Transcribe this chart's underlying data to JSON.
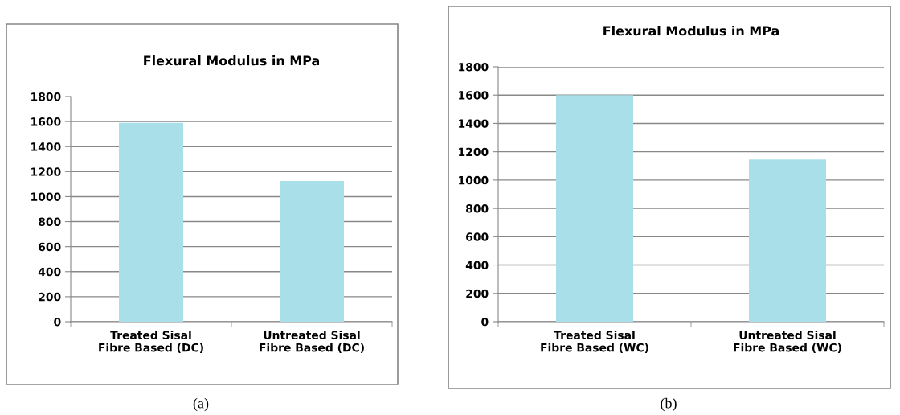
{
  "chart_data": [
    {
      "type": "bar",
      "title": "Flexural Modulus in MPa",
      "categories": [
        "Treated Sisal Fibre Based (DC)",
        "Untreated Sisal Fibre Based (DC)"
      ],
      "values": [
        1590,
        1125
      ],
      "color": "#a9dfe9",
      "ylim": [
        0,
        1800
      ],
      "yticks": [
        0,
        200,
        400,
        600,
        800,
        1000,
        1200,
        1400,
        1600,
        1800
      ],
      "grid": "y",
      "legend": false,
      "annotations": [
        "(a)"
      ]
    },
    {
      "type": "bar",
      "title": "Flexural Modulus in MPa",
      "categories": [
        "Treated Sisal Fibre Based (WC)",
        "Untreated Sisal Fibre Based (WC)"
      ],
      "values": [
        1600,
        1145
      ],
      "color": "#a9dfe9",
      "ylim": [
        0,
        1800
      ],
      "yticks": [
        0,
        200,
        400,
        600,
        800,
        1000,
        1200,
        1400,
        1600,
        1800
      ],
      "grid": "y",
      "legend": false,
      "annotations": [
        "(b)"
      ]
    }
  ]
}
